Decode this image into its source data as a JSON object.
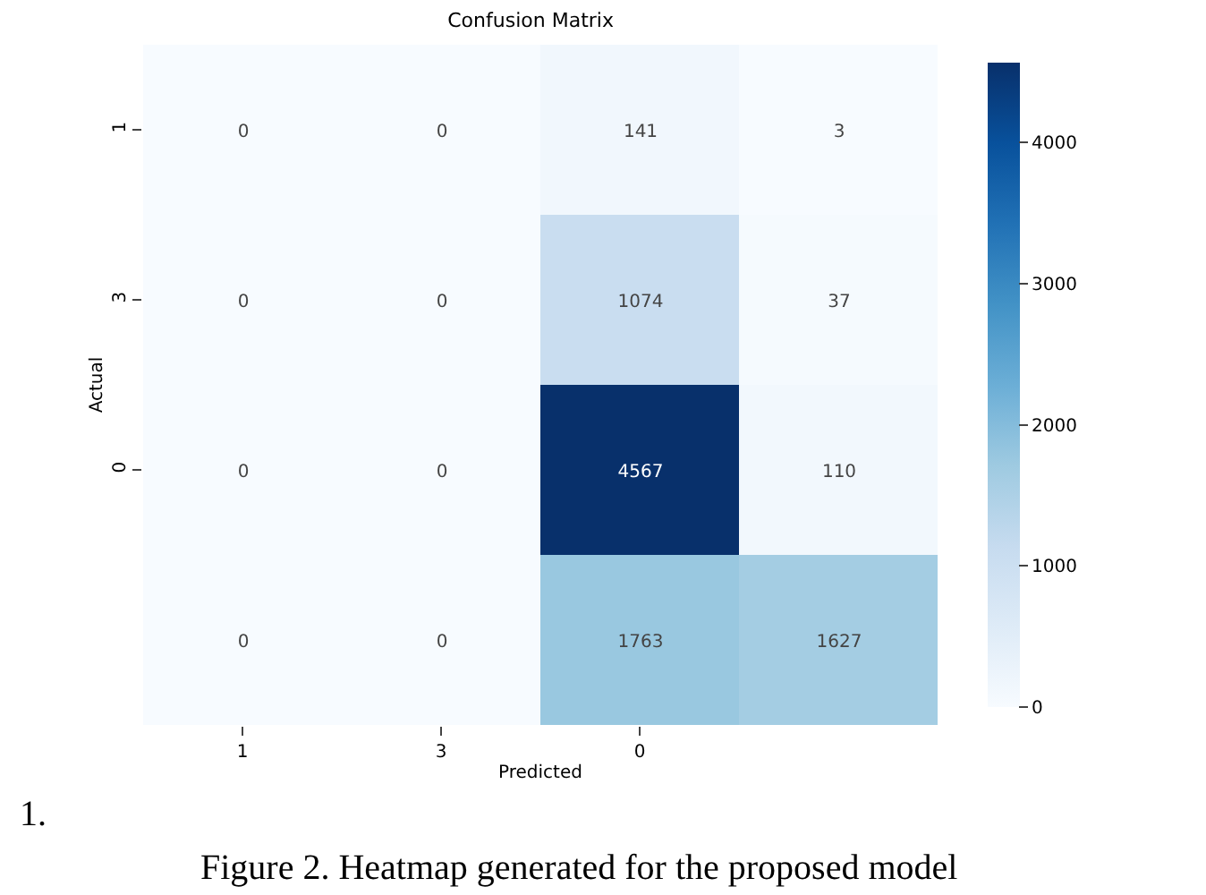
{
  "chart_data": {
    "type": "heatmap",
    "title": "Confusion Matrix",
    "xlabel": "Predicted",
    "ylabel": "Actual",
    "categories": [
      "1",
      "3",
      "0",
      null
    ],
    "y_categories": [
      "1",
      "3",
      "0",
      null
    ],
    "cells": [
      [
        0,
        0,
        141,
        3
      ],
      [
        0,
        0,
        1074,
        37
      ],
      [
        0,
        0,
        4567,
        110
      ],
      [
        0,
        0,
        1763,
        1627
      ]
    ],
    "data_labels": true,
    "clim": [
      0,
      4567
    ],
    "cticks": [
      0,
      1000,
      2000,
      3000,
      4000
    ],
    "annotations": [
      "1.",
      "Figure 2. Heatmap generated for the proposed model"
    ]
  }
}
